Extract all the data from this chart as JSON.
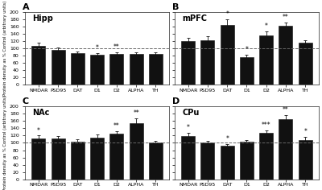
{
  "panels": [
    {
      "label": "A",
      "title": "Hipp",
      "categories": [
        "NMDAR",
        "PSD95",
        "DAT",
        "D1",
        "D2",
        "ALPHA",
        "TH"
      ],
      "values": [
        108,
        97,
        87,
        82,
        85,
        85,
        84
      ],
      "errors": [
        7,
        5,
        5,
        5,
        5,
        4,
        5
      ],
      "significance": [
        "",
        "",
        "",
        "*",
        "**",
        "",
        ""
      ],
      "dashed_line": 100
    },
    {
      "label": "B",
      "title": "mPFC",
      "categories": [
        "NMDAR",
        "PSD95",
        "DAT",
        "D1",
        "D2",
        "ALPHA",
        "TH"
      ],
      "values": [
        120,
        122,
        165,
        75,
        135,
        162,
        115
      ],
      "errors": [
        10,
        12,
        15,
        8,
        12,
        10,
        8
      ],
      "significance": [
        "",
        "",
        "*",
        "*",
        "*",
        "**",
        ""
      ],
      "dashed_line": 100
    },
    {
      "label": "C",
      "title": "NAc",
      "categories": [
        "NMDAR",
        "PSD95",
        "DAT",
        "D1",
        "D2",
        "ALPHA",
        "TH"
      ],
      "values": [
        112,
        112,
        103,
        115,
        125,
        155,
        100
      ],
      "errors": [
        8,
        7,
        6,
        8,
        8,
        12,
        5
      ],
      "significance": [
        "*",
        "",
        "",
        "",
        "**",
        "**",
        ""
      ],
      "dashed_line": 100
    },
    {
      "label": "D",
      "title": "CPu",
      "categories": [
        "NMDAR",
        "PSD95",
        "DAT",
        "D1",
        "D2",
        "ALPHA",
        "TH"
      ],
      "values": [
        118,
        100,
        92,
        103,
        127,
        165,
        108
      ],
      "errors": [
        10,
        5,
        5,
        5,
        8,
        12,
        8
      ],
      "significance": [
        "*",
        "",
        "*",
        "",
        "***",
        "**",
        "*"
      ],
      "dashed_line": 100
    }
  ],
  "bar_color": "#111111",
  "bar_edge_color": "#111111",
  "error_color": "#111111",
  "dashed_color": "#666666",
  "ylabel": "Protein density as % Control (arbitrary units)",
  "ylim": [
    0,
    200
  ],
  "yticks": [
    0,
    20,
    40,
    60,
    80,
    100,
    120,
    140,
    160,
    180,
    200
  ],
  "background_color": "#ffffff",
  "sig_fontsize": 5.5,
  "tick_fontsize": 4.5,
  "title_fontsize": 7,
  "panel_label_fontsize": 8,
  "ylabel_fontsize": 3.8
}
